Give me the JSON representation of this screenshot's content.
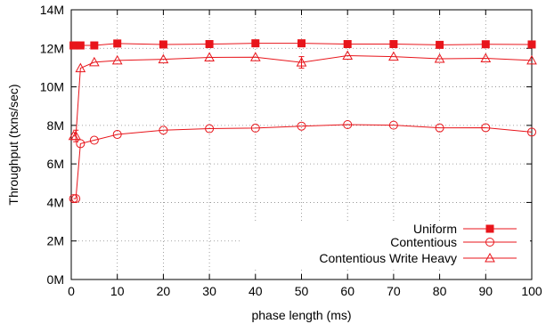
{
  "chart_data": {
    "type": "line",
    "xlabel": "phase length (ms)",
    "ylabel": "Throughput (txns/sec)",
    "xlim": [
      0,
      100
    ],
    "ylim": [
      0,
      14000000
    ],
    "xticks": [
      0,
      10,
      20,
      30,
      40,
      50,
      60,
      70,
      80,
      90,
      100
    ],
    "xtick_labels": [
      "0",
      "10",
      "20",
      "30",
      "40",
      "50",
      "60",
      "70",
      "80",
      "90",
      "100"
    ],
    "yticks": [
      0,
      2000000,
      4000000,
      6000000,
      8000000,
      10000000,
      12000000,
      14000000
    ],
    "ytick_labels": [
      "0M",
      "2M",
      "4M",
      "6M",
      "8M",
      "10M",
      "12M",
      "14M"
    ],
    "grid": true,
    "legend_position": "bottom-right",
    "color": "#e8151b",
    "series": [
      {
        "name": "Uniform",
        "marker": "filled-square",
        "x": [
          0.5,
          1,
          2,
          5,
          10,
          20,
          30,
          40,
          50,
          60,
          70,
          80,
          90,
          100
        ],
        "y": [
          12150000,
          12150000,
          12150000,
          12150000,
          12250000,
          12200000,
          12220000,
          12260000,
          12260000,
          12220000,
          12220000,
          12180000,
          12210000,
          12200000
        ]
      },
      {
        "name": "Contentious",
        "marker": "open-circle",
        "x": [
          0.5,
          1,
          2,
          5,
          10,
          20,
          30,
          40,
          50,
          60,
          70,
          80,
          90,
          100
        ],
        "y": [
          4200000,
          4200000,
          7050000,
          7230000,
          7530000,
          7750000,
          7830000,
          7860000,
          7960000,
          8040000,
          8010000,
          7870000,
          7880000,
          7650000
        ]
      },
      {
        "name": "Contentious Write Heavy",
        "marker": "open-triangle",
        "x": [
          0.5,
          1,
          2,
          5,
          10,
          20,
          30,
          40,
          50,
          60,
          70,
          80,
          90,
          100
        ],
        "y": [
          7450000,
          7450000,
          10970000,
          11280000,
          11370000,
          11430000,
          11530000,
          11540000,
          11270000,
          11620000,
          11570000,
          11460000,
          11480000,
          11370000
        ],
        "error": [
          0,
          300000,
          0,
          0,
          0,
          0,
          0,
          0,
          300000,
          0,
          0,
          0,
          0,
          0
        ]
      }
    ]
  }
}
